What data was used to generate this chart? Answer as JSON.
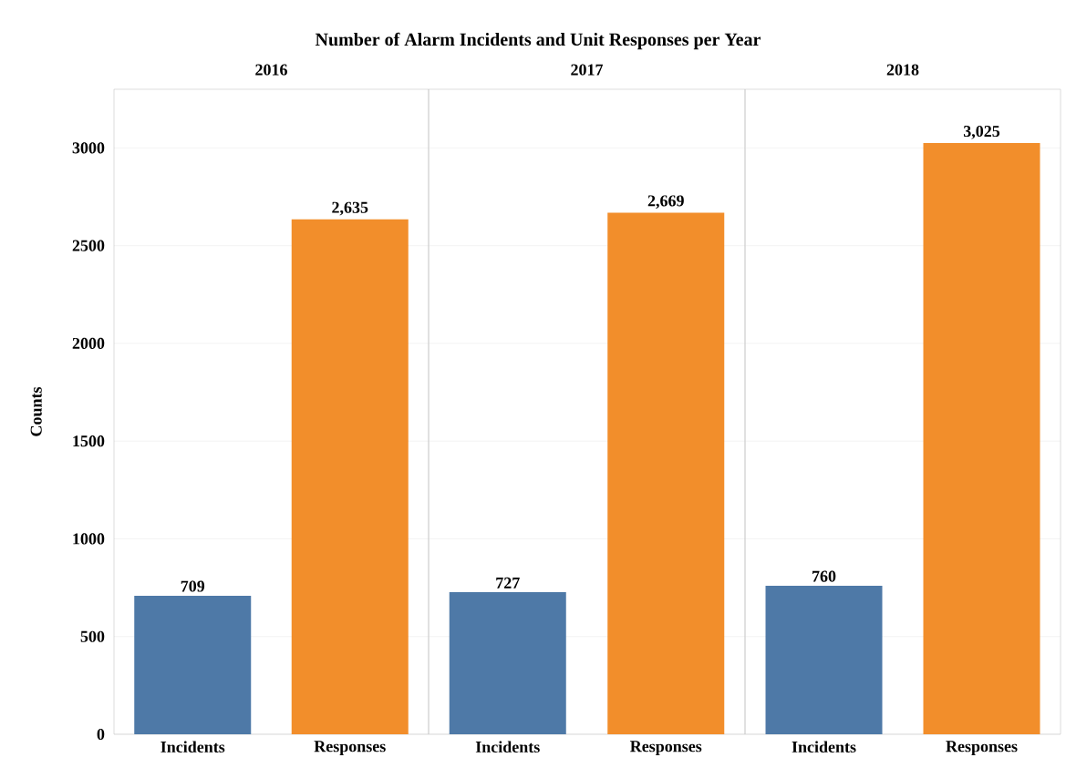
{
  "chart_data": [
    {
      "type": "bar",
      "title": "Number of Alarm Incidents and Unit Responses per Year",
      "subtitle": "2016",
      "ylabel": "Counts",
      "categories": [
        "Incidents",
        "Responses"
      ],
      "values": [
        709,
        2635
      ],
      "colors": [
        "#4e79a7",
        "#f28e2b"
      ],
      "value_labels": [
        "709",
        "2,635"
      ],
      "ylim": [
        0,
        3300
      ],
      "yticks": [
        0,
        500,
        1000,
        1500,
        2000,
        2500,
        3000
      ],
      "grid": "y"
    },
    {
      "type": "bar",
      "subtitle": "2017",
      "categories": [
        "Incidents",
        "Responses"
      ],
      "values": [
        727,
        2669
      ],
      "colors": [
        "#4e79a7",
        "#f28e2b"
      ],
      "value_labels": [
        "727",
        "2,669"
      ],
      "ylim": [
        0,
        3300
      ],
      "yticks": [
        0,
        500,
        1000,
        1500,
        2000,
        2500,
        3000
      ],
      "grid": "y",
      "tick_labels": "x"
    },
    {
      "type": "bar",
      "subtitle": "2018",
      "categories": [
        "Incidents",
        "Responses"
      ],
      "values": [
        760,
        3025
      ],
      "colors": [
        "#4e79a7",
        "#f28e2b"
      ],
      "value_labels": [
        "760",
        "3,025"
      ],
      "ylim": [
        0,
        3300
      ],
      "yticks": [
        0,
        500,
        1000,
        1500,
        2000,
        2500,
        3000
      ],
      "grid": "y",
      "tick_labels": "x"
    }
  ]
}
